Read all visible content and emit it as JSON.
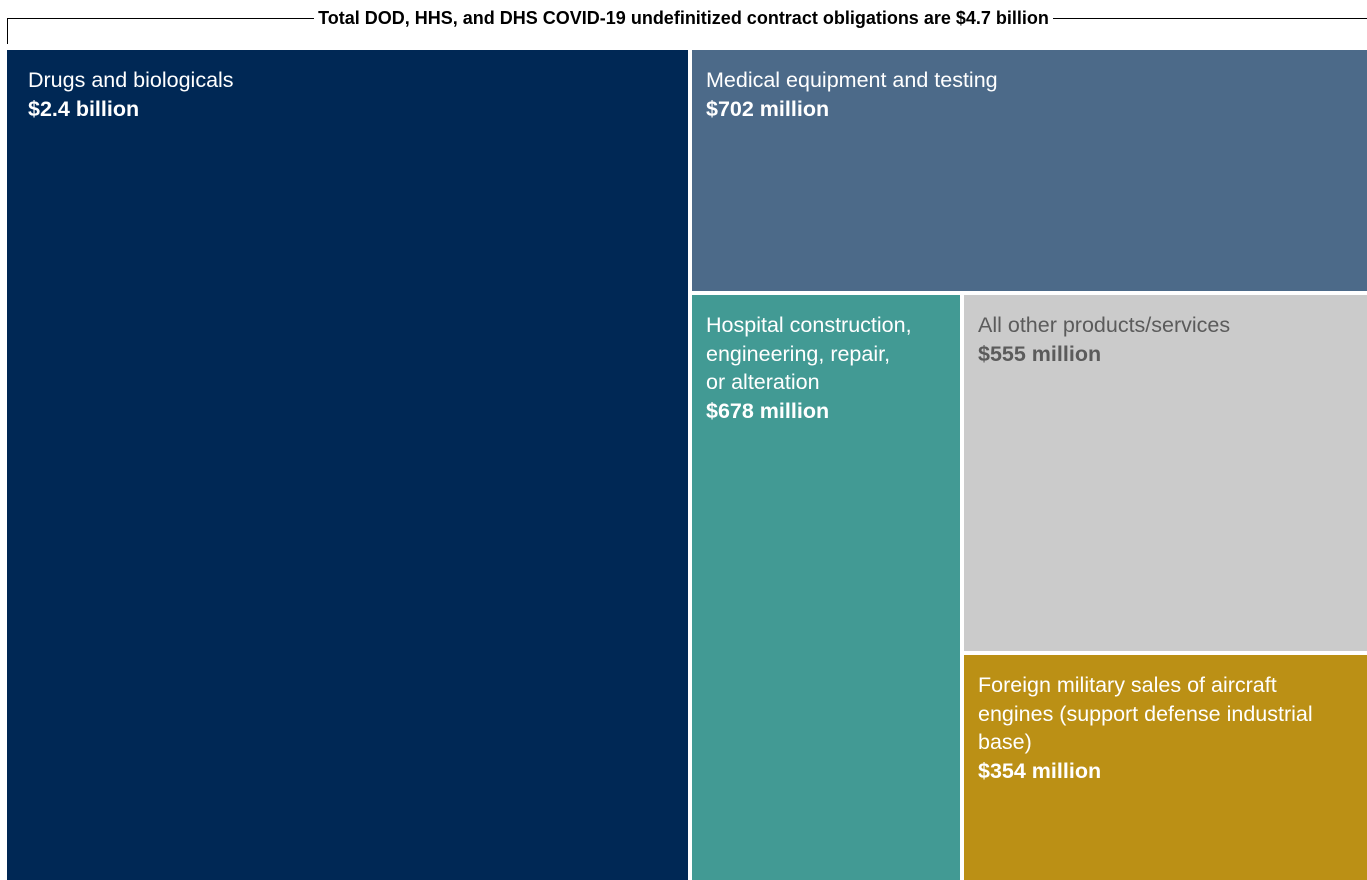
{
  "chart_data": {
    "type": "treemap",
    "title": "Total DOD, HHS, and DHS COVID-19 undefinitized contract obligations are $4.7 billion",
    "units": "USD millions",
    "series": [
      {
        "label": "Drugs and biologicals",
        "value_text": "$2.4 billion",
        "value": 2400,
        "color": "#002855",
        "text_color": "#ffffff"
      },
      {
        "label": "Medical equipment and testing",
        "value_text": "$702 million",
        "value": 702,
        "color": "#4c6a89",
        "text_color": "#ffffff"
      },
      {
        "label": "Hospital construction,\nengineering, repair,\nor alteration",
        "value_text": "$678 million",
        "value": 678,
        "color": "#429a94",
        "text_color": "#ffffff"
      },
      {
        "label": "All other products/services",
        "value_text": "$555 million",
        "value": 555,
        "color": "#cbcbcb",
        "text_color": "#5b5b5b"
      },
      {
        "label": "Foreign military sales of aircraft engines (support defense industrial base)",
        "value_text": "$354 million",
        "value": 354,
        "color": "#bb9015",
        "text_color": "#ffffff"
      }
    ]
  }
}
